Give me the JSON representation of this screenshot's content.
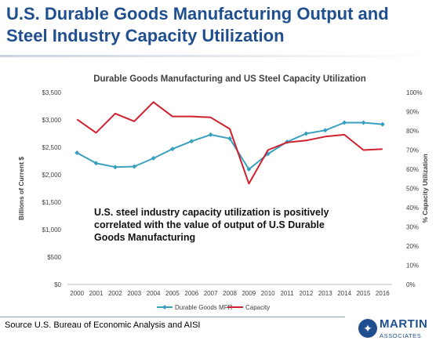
{
  "slide": {
    "title": "U.S. Durable Goods Manufacturing Output and Steel Industry Capacity Utilization",
    "callout": "U.S. steel industry capacity utilization is positively correlated with the value of output of U.S Durable Goods Manufacturing",
    "source": "Source U.S. Bureau of Economic Analysis and AISI",
    "logo": {
      "name": "MARTIN",
      "subtitle": "ASSOCIATES",
      "icon": "compass-icon"
    }
  },
  "chart_data": {
    "type": "line",
    "title": "Durable Goods Manufacturing and US Steel Capacity Utilization",
    "xlabel": "",
    "ylabel_left": "Billions of Current $",
    "ylabel_right": "% Capacity Utilization",
    "categories": [
      "2000",
      "2001",
      "2002",
      "2003",
      "2004",
      "2005",
      "2006",
      "2007",
      "2008",
      "2009",
      "2010",
      "2011",
      "2012",
      "2013",
      "2014",
      "2015",
      "2016"
    ],
    "ylim_left": [
      0,
      3500
    ],
    "yticks_left": [
      "$0",
      "$500",
      "$1,000",
      "$1,500",
      "$2,000",
      "$2,500",
      "$3,000",
      "$3,500"
    ],
    "ylim_right": [
      0,
      100
    ],
    "yticks_right": [
      "0%",
      "10%",
      "20%",
      "30%",
      "40%",
      "50%",
      "60%",
      "70%",
      "80%",
      "90%",
      "100%"
    ],
    "grid": false,
    "legend": "bottom",
    "series": [
      {
        "name": "Durable Goods MFR",
        "axis": "left",
        "color": "#3aa0c0",
        "marker": "diamond",
        "values": [
          2400,
          2210,
          2140,
          2150,
          2300,
          2470,
          2610,
          2730,
          2660,
          2100,
          2380,
          2600,
          2750,
          2810,
          2950,
          2950,
          2920
        ]
      },
      {
        "name": "Capacity",
        "axis": "right",
        "color": "#d0202e",
        "marker": "none",
        "values": [
          86,
          79,
          89,
          85,
          95,
          87.5,
          87.5,
          87,
          81,
          52.5,
          70,
          74,
          75,
          77,
          78,
          70,
          70.5
        ]
      }
    ]
  }
}
